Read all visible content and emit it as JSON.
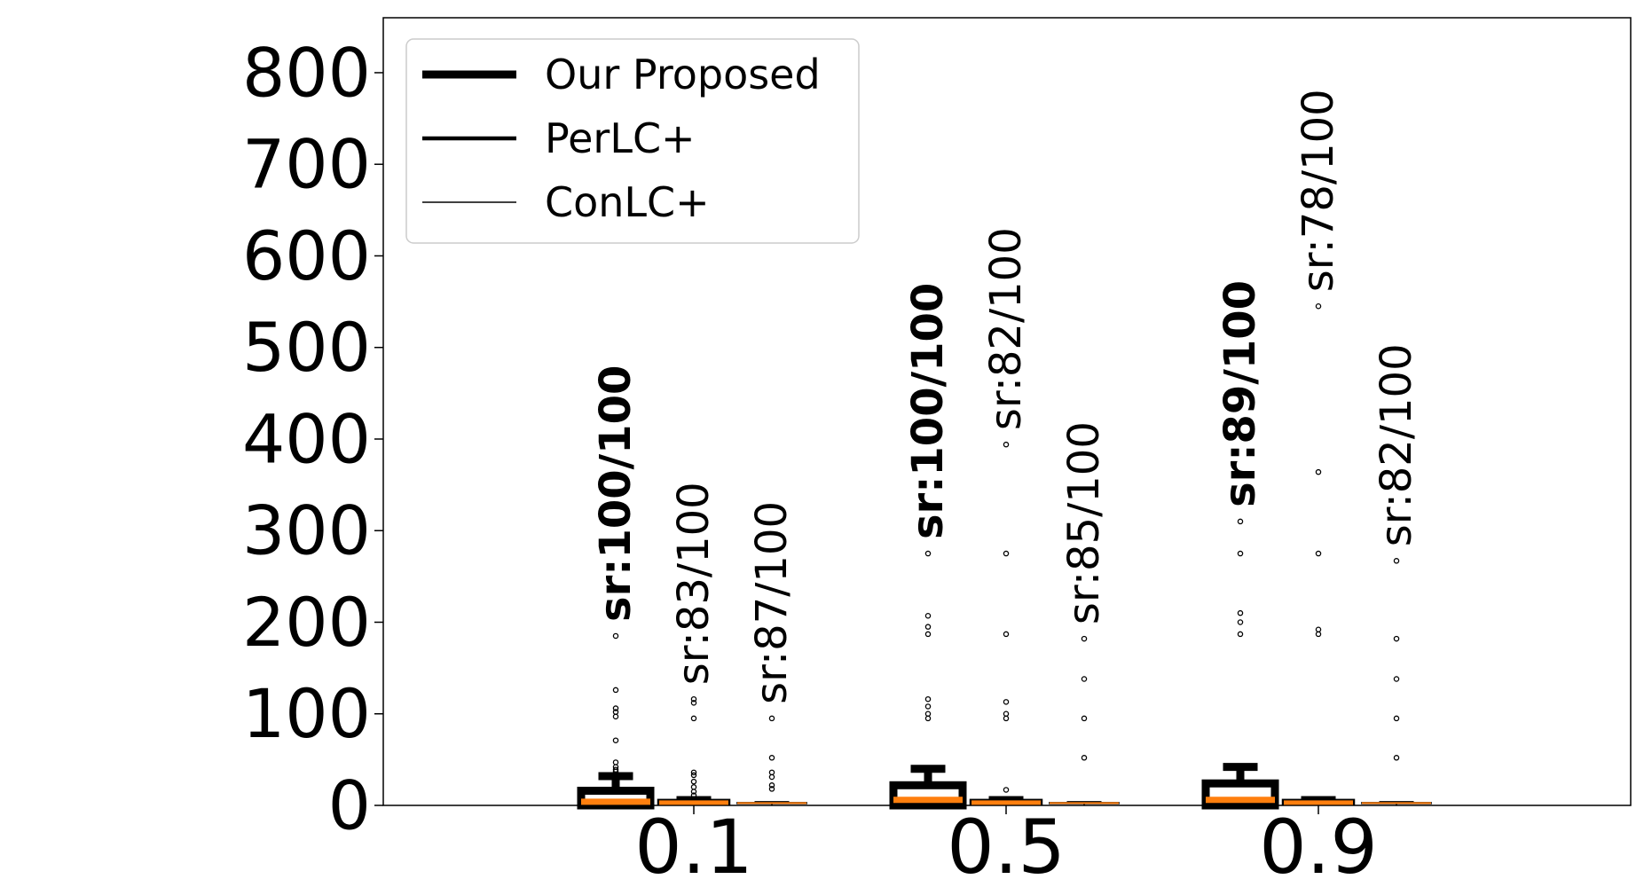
{
  "chart_data": {
    "type": "box",
    "title": "",
    "xlabel": "",
    "ylabel": "",
    "ylim": [
      0,
      860
    ],
    "yticks": [
      0,
      100,
      200,
      300,
      400,
      500,
      600,
      700,
      800
    ],
    "categories": [
      "0.1",
      "0.5",
      "0.9"
    ],
    "grid": false,
    "legend_position": "top-left",
    "colors": {
      "median": "#ff7f0e",
      "box": "#000000"
    },
    "series": [
      {
        "name": "Our Proposed",
        "line_weight": "thick",
        "boxes": [
          {
            "whisker_low": 0,
            "q1": 0,
            "median": 4,
            "q3": 16,
            "whisker_high": 32,
            "outliers": [
              185,
              126,
              106,
              102,
              97,
              71,
              47,
              42,
              39,
              37
            ],
            "success_label": "sr:100/100"
          },
          {
            "whisker_low": 0,
            "q1": 0,
            "median": 6,
            "q3": 22,
            "whisker_high": 40,
            "outliers": [
              275,
              207,
              195,
              187,
              116,
              108,
              100,
              95
            ],
            "success_label": "sr:100/100"
          },
          {
            "whisker_low": 0,
            "q1": 0,
            "median": 6,
            "q3": 24,
            "whisker_high": 42,
            "outliers": [
              310,
              275,
              210,
              200,
              187
            ],
            "success_label": "sr:89/100"
          }
        ]
      },
      {
        "name": "PerLC+",
        "line_weight": "medium",
        "boxes": [
          {
            "whisker_low": 0,
            "q1": 2,
            "median": 3,
            "q3": 5,
            "whisker_high": 8,
            "outliers": [
              116,
              112,
              95,
              36,
              33,
              26,
              20,
              15,
              11
            ],
            "success_label": "sr:83/100"
          },
          {
            "whisker_low": 0,
            "q1": 2,
            "median": 3,
            "q3": 5,
            "whisker_high": 8,
            "outliers": [
              394,
              275,
              187,
              113,
              100,
              95,
              17
            ],
            "success_label": "sr:82/100"
          },
          {
            "whisker_low": 0,
            "q1": 2,
            "median": 3,
            "q3": 5,
            "whisker_high": 8,
            "outliers": [
              545,
              364,
              275,
              192,
              187
            ],
            "success_label": "sr:78/100"
          }
        ]
      },
      {
        "name": "ConLC+",
        "line_weight": "thin",
        "boxes": [
          {
            "whisker_low": 0,
            "q1": 2,
            "median": 2.5,
            "q3": 3,
            "whisker_high": 4,
            "outliers": [
              95,
              52,
              36,
              31,
              22,
              18
            ],
            "success_label": "sr:87/100"
          },
          {
            "whisker_low": 0,
            "q1": 2,
            "median": 2.5,
            "q3": 3,
            "whisker_high": 4,
            "outliers": [
              182,
              138,
              95,
              52
            ],
            "success_label": "sr:85/100"
          },
          {
            "whisker_low": 0,
            "q1": 2,
            "median": 2.5,
            "q3": 3,
            "whisker_high": 4,
            "outliers": [
              267,
              182,
              138,
              95,
              52
            ],
            "success_label": "sr:82/100"
          }
        ]
      }
    ]
  }
}
